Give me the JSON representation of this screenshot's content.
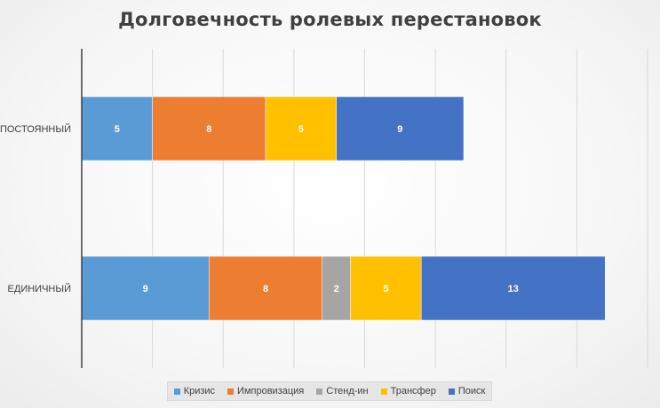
{
  "chart_data": {
    "type": "bar",
    "orientation": "horizontal",
    "stacked": true,
    "title": "Долговечность ролевых перестановок",
    "categories": [
      "ПОСТОЯННЫЙ",
      "ЕДИНИЧНЫЙ"
    ],
    "series": [
      {
        "name": "Кризис",
        "color": "#5b9bd5",
        "values": [
          5,
          9
        ]
      },
      {
        "name": "Импровизация",
        "color": "#ed7d31",
        "values": [
          8,
          8
        ]
      },
      {
        "name": "Стенд-ин",
        "color": "#a5a5a5",
        "values": [
          0,
          2
        ]
      },
      {
        "name": "Трансфер",
        "color": "#ffc000",
        "values": [
          5,
          5
        ]
      },
      {
        "name": "Поиск",
        "color": "#4472c4",
        "values": [
          9,
          13
        ]
      }
    ],
    "xlim": [
      0,
      40
    ],
    "grid": true,
    "legend": "bottom"
  }
}
